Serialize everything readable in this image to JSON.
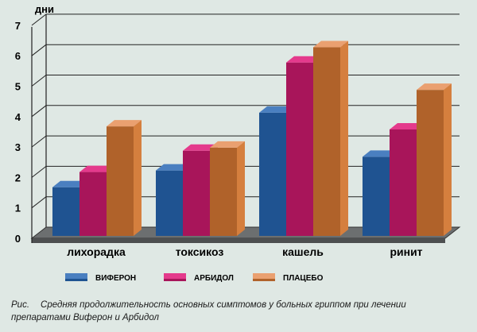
{
  "chart_data": {
    "type": "bar",
    "ylabel": "дни",
    "ylim": [
      0,
      7
    ],
    "yticks": [
      "0",
      "1",
      "2",
      "3",
      "4",
      "5",
      "6",
      "7"
    ],
    "categories": [
      "лихорадка",
      "токсикоз",
      "кашель",
      "ринит"
    ],
    "series": [
      {
        "name": "ВИФЕРОН",
        "values": [
          1.6,
          2.15,
          4.05,
          2.6
        ],
        "color": "#1f5391",
        "top": "#4a7fc0",
        "side": "#163e6e"
      },
      {
        "name": "АРБИДОЛ",
        "values": [
          2.1,
          2.8,
          5.7,
          3.5
        ],
        "color": "#a8155a",
        "top": "#e43a8c",
        "side": "#7d0f43"
      },
      {
        "name": "ПЛАЦЕБО",
        "values": [
          3.6,
          2.9,
          6.2,
          4.8
        ],
        "color": "#b0622a",
        "top": "#eaa070",
        "side": "#d57f3e"
      }
    ],
    "legend": "bottom",
    "grid": true
  },
  "caption": {
    "prefix": "Рис.",
    "text": "Средняя продолжительность основных симптомов у больных гриппом при лечении препаратами Виферон и Арбидол"
  }
}
